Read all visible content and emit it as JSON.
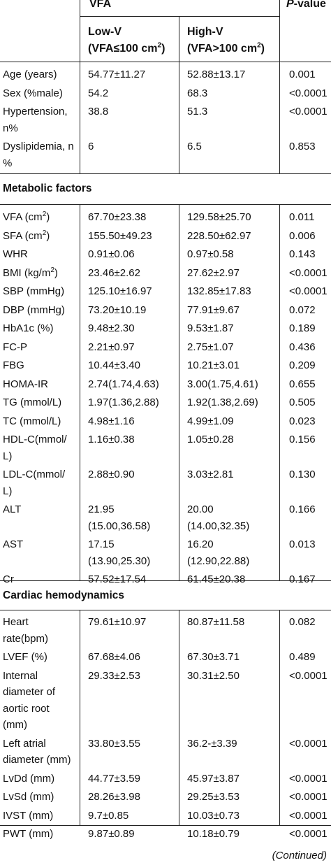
{
  "header": {
    "group": "VFA",
    "pvalue_prefix": "P",
    "pvalue_suffix": "-value",
    "low_title": "Low-V",
    "low_sub_pre": "(VFA≤100 cm",
    "low_sub_sup": "2",
    "low_sub_post": ")",
    "high_title": "High-V",
    "high_sub_pre": "(VFA>100 cm",
    "high_sub_sup": "2",
    "high_sub_post": ")"
  },
  "demographics": [
    {
      "label": [
        "Age (years)"
      ],
      "low": [
        "54.77±11.27"
      ],
      "high": [
        "52.88±13.17"
      ],
      "p": "0.001"
    },
    {
      "label": [
        "Sex (%male)"
      ],
      "low": [
        "54.2"
      ],
      "high": [
        "68.3"
      ],
      "p": "<0.0001"
    },
    {
      "label": [
        "Hypertension,",
        "n%"
      ],
      "low": [
        "38.8"
      ],
      "high": [
        "51.3"
      ],
      "p": "<0.0001"
    },
    {
      "label": [
        "Dyslipidemia, n",
        "%"
      ],
      "low": [
        "6"
      ],
      "high": [
        "6.5"
      ],
      "p": "0.853"
    }
  ],
  "section_metabolic": "Metabolic factors",
  "metabolic": [
    {
      "label": [
        "VFA (cm"
      ],
      "sup": "2",
      "post": ")",
      "low": [
        "67.70±23.38"
      ],
      "high": [
        "129.58±25.70"
      ],
      "p": "0.011"
    },
    {
      "label": [
        "SFA (cm"
      ],
      "sup": "2",
      "post": ")",
      "low": [
        "155.50±49.23"
      ],
      "high": [
        "228.50±62.97"
      ],
      "p": "0.006"
    },
    {
      "label": [
        "WHR"
      ],
      "low": [
        "0.91±0.06"
      ],
      "high": [
        "0.97±0.58"
      ],
      "p": "0.143"
    },
    {
      "label": [
        "BMI (kg/m"
      ],
      "sup": "2",
      "post": ")",
      "low": [
        "23.46±2.62"
      ],
      "high": [
        "27.62±2.97"
      ],
      "p": "<0.0001"
    },
    {
      "label": [
        "SBP (mmHg)"
      ],
      "low": [
        "125.10±16.97"
      ],
      "high": [
        "132.85±17.83"
      ],
      "p": "<0.0001"
    },
    {
      "label": [
        "DBP (mmHg)"
      ],
      "low": [
        "73.20±10.19"
      ],
      "high": [
        "77.91±9.67"
      ],
      "p": "0.072"
    },
    {
      "label": [
        "HbA1c (%)"
      ],
      "low": [
        "9.48±2.30"
      ],
      "high": [
        "9.53±1.87"
      ],
      "p": "0.189"
    },
    {
      "label": [
        "FC-P"
      ],
      "low": [
        "2.21±0.97"
      ],
      "high": [
        "2.75±1.07"
      ],
      "p": "0.436"
    },
    {
      "label": [
        "FBG"
      ],
      "low": [
        "10.44±3.40"
      ],
      "high": [
        "10.21±3.01"
      ],
      "p": "0.209"
    },
    {
      "label": [
        "HOMA-IR"
      ],
      "low": [
        "2.74(1.74,4.63)"
      ],
      "high": [
        "3.00(1.75,4.61)"
      ],
      "p": "0.655"
    },
    {
      "label": [
        "TG (mmol/L)"
      ],
      "low": [
        "1.97(1.36,2.88)"
      ],
      "high": [
        "1.92(1.38,2.69)"
      ],
      "p": "0.505"
    },
    {
      "label": [
        "TC (mmol/L)"
      ],
      "low": [
        "4.98±1.16"
      ],
      "high": [
        "4.99±1.09"
      ],
      "p": "0.023"
    },
    {
      "label": [
        "HDL-C(mmol/",
        "L)"
      ],
      "low": [
        "1.16±0.38"
      ],
      "high": [
        "1.05±0.28"
      ],
      "p": "0.156"
    },
    {
      "label": [
        "LDL-C(mmol/",
        "L)"
      ],
      "low": [
        "2.88±0.90"
      ],
      "high": [
        "3.03±2.81"
      ],
      "p": "0.130"
    },
    {
      "label": [
        "ALT"
      ],
      "low": [
        "21.95",
        "(15.00,36.58)"
      ],
      "high": [
        "20.00",
        "(14.00,32.35)"
      ],
      "p": "0.166"
    },
    {
      "label": [
        "AST"
      ],
      "low": [
        "17.15",
        "(13.90,25.30)"
      ],
      "high": [
        "16.20",
        "(12.90,22.88)"
      ],
      "p": "0.013"
    },
    {
      "label": [
        "Cr"
      ],
      "low": [
        "57.52±17.54"
      ],
      "high": [
        "61.45±20.38"
      ],
      "p": "0.167"
    }
  ],
  "section_cardiac": "Cardiac hemodynamics",
  "cardiac": [
    {
      "label": [
        "Heart",
        "rate(bpm)"
      ],
      "low": [
        "79.61±10.97"
      ],
      "high": [
        "80.87±11.58"
      ],
      "p": "0.082"
    },
    {
      "label": [
        "LVEF (%)"
      ],
      "low": [
        "67.68±4.06"
      ],
      "high": [
        "67.30±3.71"
      ],
      "p": "0.489"
    },
    {
      "label": [
        "Internal",
        "diameter of",
        "aortic root",
        "(mm)"
      ],
      "low": [
        "29.33±2.53"
      ],
      "high": [
        "30.31±2.50"
      ],
      "p": "<0.0001"
    },
    {
      "label": [
        "Left atrial",
        "diameter (mm)"
      ],
      "low": [
        "33.80±3.55"
      ],
      "high": [
        "36.2-±3.39"
      ],
      "p": "<0.0001"
    },
    {
      "label": [
        "LvDd (mm)"
      ],
      "low": [
        "44.77±3.59"
      ],
      "high": [
        "45.97±3.87"
      ],
      "p": "<0.0001"
    },
    {
      "label": [
        "LvSd (mm)"
      ],
      "low": [
        "28.26±3.98"
      ],
      "high": [
        "29.25±3.53"
      ],
      "p": "<0.0001"
    },
    {
      "label": [
        "IVST (mm)"
      ],
      "low": [
        "9.7±0.85"
      ],
      "high": [
        "10.03±0.73"
      ],
      "p": "<0.0001"
    },
    {
      "label": [
        "PWT (mm)"
      ],
      "low": [
        "9.87±0.89"
      ],
      "high": [
        "10.18±0.79"
      ],
      "p": "<0.0001"
    }
  ],
  "continued": "(Continued)"
}
